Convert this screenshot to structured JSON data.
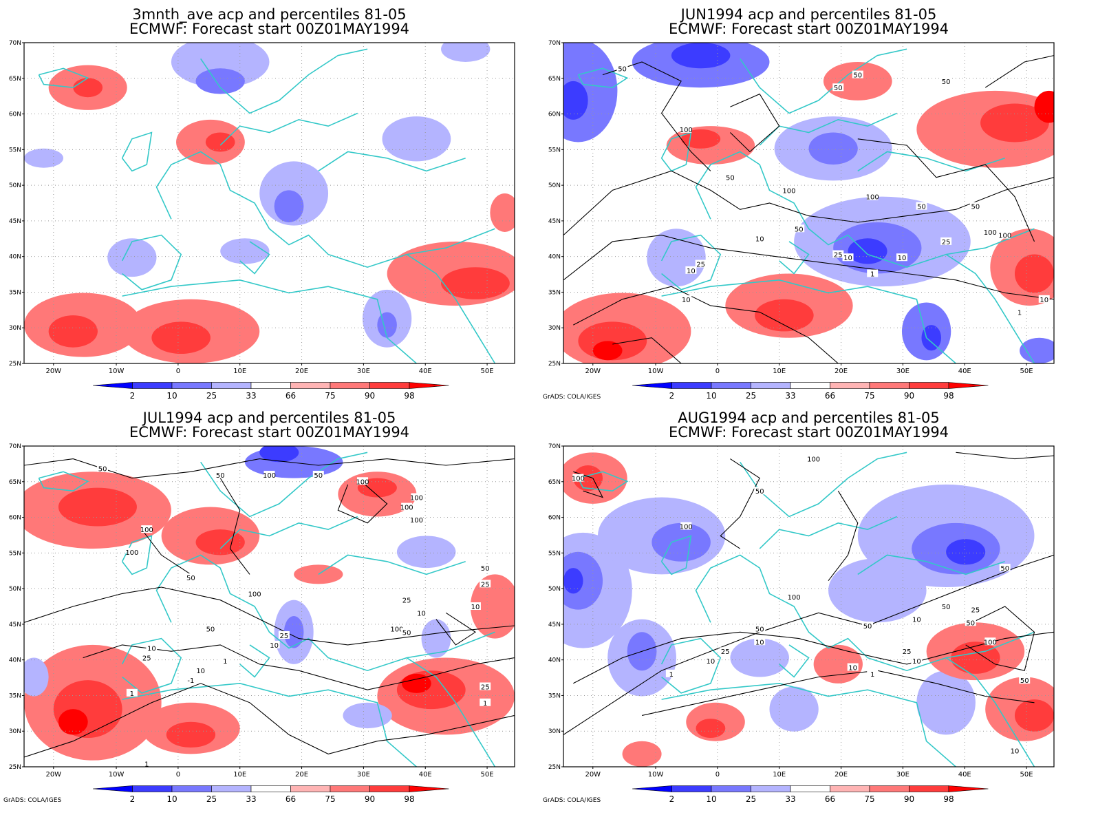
{
  "panels": [
    {
      "title_line1": "3mnth_ave acp and percentiles 81-05",
      "title_line2": "ECMWF: Forecast start 00Z01MAY1994",
      "footer": "",
      "contour_labels": []
    },
    {
      "title_line1": "JUN1994 acp and percentiles 81-05",
      "title_line2": "ECMWF: Forecast start 00Z01MAY1994",
      "footer": "GrADS: COLA/IGES",
      "contour_labels": [
        "50",
        "50",
        "50",
        "50",
        "100",
        "100",
        "100",
        "100",
        "50",
        "50",
        "10",
        "25",
        "10",
        "1",
        "10",
        "25",
        "10",
        "50",
        "25",
        "10",
        "1",
        "10",
        "100",
        "50"
      ]
    },
    {
      "title_line1": "JUL1994 acp and percentiles 81-05",
      "title_line2": "ECMWF: Forecast start 00Z01MAY1994",
      "footer": "GrADS: COLA/IGES",
      "contour_labels": [
        "50",
        "50",
        "100",
        "50",
        "100",
        "100",
        "100",
        "100",
        "100",
        "100",
        "50",
        "100",
        "50",
        "25",
        "10",
        "10",
        "25",
        "10",
        "1",
        "-1",
        "1",
        "25",
        "10",
        "100",
        "50",
        "25",
        "10",
        "25",
        "1",
        "1",
        "50"
      ]
    },
    {
      "title_line1": "AUG1994 acp and percentiles 81-05",
      "title_line2": "ECMWF: Forecast start 00Z01MAY1994",
      "footer": "GrADS: COLA/IGES",
      "contour_labels": [
        "100",
        "100",
        "100",
        "50",
        "100",
        "50",
        "50",
        "10",
        "25",
        "10",
        "25",
        "10",
        "50",
        "10",
        "25",
        "50",
        "100",
        "1",
        "10",
        "1",
        "50",
        "50",
        "10"
      ]
    }
  ],
  "lat_labels": [
    "70N",
    "65N",
    "60N",
    "55N",
    "50N",
    "45N",
    "40N",
    "35N",
    "30N",
    "25N"
  ],
  "lon_labels": [
    "20W",
    "10W",
    "0",
    "10E",
    "20E",
    "30E",
    "40E",
    "50E"
  ],
  "colorbar_labels": [
    "2",
    "10",
    "25",
    "33",
    "66",
    "75",
    "90",
    "98"
  ],
  "colorbar_colors": [
    "#0000ff",
    "#3c3cff",
    "#7878ff",
    "#b4b4ff",
    "#ffffff",
    "#ffb4b4",
    "#ff7878",
    "#ff3c3c",
    "#ff0000"
  ],
  "coast_color": "#33c8c8",
  "contour_color": "#000000"
}
